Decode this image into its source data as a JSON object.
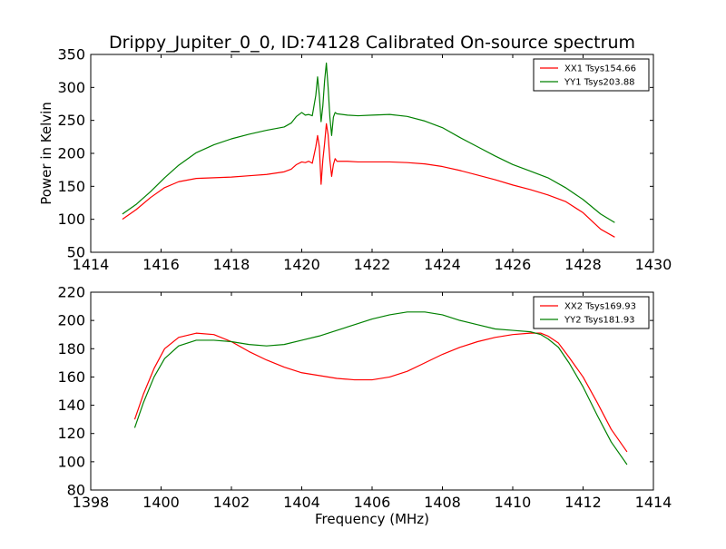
{
  "figure": {
    "title": "Drippy_Jupiter_0_0, ID:74128 Calibrated On-source spectrum",
    "xlabel": "Frequency (MHz)"
  },
  "chart_data": [
    {
      "type": "line",
      "ylabel": "Power in Kelvin",
      "xlim": [
        1414,
        1430
      ],
      "ylim": [
        50,
        350
      ],
      "xticks": [
        1414,
        1416,
        1418,
        1420,
        1422,
        1424,
        1426,
        1428,
        1430
      ],
      "yticks": [
        50,
        100,
        150,
        200,
        250,
        300,
        350
      ],
      "grid": false,
      "legend_position": "top-right",
      "series": [
        {
          "name": "XX1 Tsys154.66",
          "color": "#ff0000",
          "points": [
            [
              1414.9,
              100
            ],
            [
              1415.3,
              115
            ],
            [
              1415.7,
              133
            ],
            [
              1416.1,
              148
            ],
            [
              1416.5,
              157
            ],
            [
              1417.0,
              162
            ],
            [
              1417.5,
              163
            ],
            [
              1418.0,
              164
            ],
            [
              1418.5,
              166
            ],
            [
              1419.0,
              168
            ],
            [
              1419.5,
              172
            ],
            [
              1419.7,
              176
            ],
            [
              1419.85,
              183
            ],
            [
              1420.0,
              187
            ],
            [
              1420.1,
              186
            ],
            [
              1420.2,
              188
            ],
            [
              1420.3,
              185
            ],
            [
              1420.4,
              210
            ],
            [
              1420.45,
              227
            ],
            [
              1420.5,
              210
            ],
            [
              1420.55,
              153
            ],
            [
              1420.6,
              190
            ],
            [
              1420.65,
              215
            ],
            [
              1420.7,
              245
            ],
            [
              1420.75,
              228
            ],
            [
              1420.8,
              190
            ],
            [
              1420.85,
              165
            ],
            [
              1420.9,
              183
            ],
            [
              1420.95,
              192
            ],
            [
              1421.0,
              188
            ],
            [
              1421.3,
              188
            ],
            [
              1421.6,
              187
            ],
            [
              1422.0,
              187
            ],
            [
              1422.5,
              187
            ],
            [
              1423.0,
              186
            ],
            [
              1423.5,
              184
            ],
            [
              1424.0,
              180
            ],
            [
              1424.5,
              174
            ],
            [
              1425.0,
              167
            ],
            [
              1425.5,
              160
            ],
            [
              1426.0,
              152
            ],
            [
              1426.5,
              145
            ],
            [
              1427.0,
              137
            ],
            [
              1427.5,
              127
            ],
            [
              1428.0,
              110
            ],
            [
              1428.5,
              85
            ],
            [
              1428.9,
              73
            ]
          ]
        },
        {
          "name": "YY1 Tsys203.88",
          "color": "#008000",
          "points": [
            [
              1414.9,
              108
            ],
            [
              1415.3,
              123
            ],
            [
              1415.7,
              142
            ],
            [
              1416.1,
              163
            ],
            [
              1416.5,
              182
            ],
            [
              1417.0,
              201
            ],
            [
              1417.5,
              213
            ],
            [
              1418.0,
              222
            ],
            [
              1418.5,
              229
            ],
            [
              1419.0,
              235
            ],
            [
              1419.5,
              240
            ],
            [
              1419.7,
              246
            ],
            [
              1419.85,
              256
            ],
            [
              1420.0,
              262
            ],
            [
              1420.1,
              258
            ],
            [
              1420.2,
              259
            ],
            [
              1420.3,
              257
            ],
            [
              1420.4,
              288
            ],
            [
              1420.45,
              316
            ],
            [
              1420.5,
              288
            ],
            [
              1420.55,
              248
            ],
            [
              1420.6,
              272
            ],
            [
              1420.65,
              310
            ],
            [
              1420.7,
              337
            ],
            [
              1420.75,
              300
            ],
            [
              1420.8,
              255
            ],
            [
              1420.85,
              227
            ],
            [
              1420.9,
              255
            ],
            [
              1420.95,
              262
            ],
            [
              1421.0,
              260
            ],
            [
              1421.3,
              258
            ],
            [
              1421.6,
              257
            ],
            [
              1422.0,
              258
            ],
            [
              1422.5,
              259
            ],
            [
              1423.0,
              256
            ],
            [
              1423.5,
              249
            ],
            [
              1424.0,
              239
            ],
            [
              1424.5,
              224
            ],
            [
              1425.0,
              210
            ],
            [
              1425.5,
              196
            ],
            [
              1426.0,
              183
            ],
            [
              1426.5,
              173
            ],
            [
              1427.0,
              163
            ],
            [
              1427.5,
              148
            ],
            [
              1428.0,
              130
            ],
            [
              1428.5,
              108
            ],
            [
              1428.9,
              95
            ]
          ]
        }
      ]
    },
    {
      "type": "line",
      "ylabel": "",
      "xlim": [
        1398,
        1414
      ],
      "ylim": [
        80,
        220
      ],
      "xticks": [
        1398,
        1400,
        1402,
        1404,
        1406,
        1408,
        1410,
        1412,
        1414
      ],
      "yticks": [
        80,
        100,
        120,
        140,
        160,
        180,
        200,
        220
      ],
      "grid": false,
      "legend_position": "top-right",
      "series": [
        {
          "name": "XX2 Tsys169.93",
          "color": "#ff0000",
          "points": [
            [
              1399.25,
              130
            ],
            [
              1399.5,
              148
            ],
            [
              1399.8,
              166
            ],
            [
              1400.1,
              180
            ],
            [
              1400.5,
              188
            ],
            [
              1401.0,
              191
            ],
            [
              1401.5,
              190
            ],
            [
              1402.0,
              185
            ],
            [
              1402.5,
              178
            ],
            [
              1403.0,
              172
            ],
            [
              1403.5,
              167
            ],
            [
              1404.0,
              163
            ],
            [
              1404.5,
              161
            ],
            [
              1405.0,
              159
            ],
            [
              1405.5,
              158
            ],
            [
              1406.0,
              158
            ],
            [
              1406.5,
              160
            ],
            [
              1407.0,
              164
            ],
            [
              1407.5,
              170
            ],
            [
              1408.0,
              176
            ],
            [
              1408.5,
              181
            ],
            [
              1409.0,
              185
            ],
            [
              1409.5,
              188
            ],
            [
              1410.0,
              190
            ],
            [
              1410.5,
              191
            ],
            [
              1410.8,
              191
            ],
            [
              1411.0,
              189
            ],
            [
              1411.3,
              184
            ],
            [
              1411.6,
              174
            ],
            [
              1412.0,
              160
            ],
            [
              1412.4,
              142
            ],
            [
              1412.8,
              123
            ],
            [
              1413.25,
              107
            ]
          ]
        },
        {
          "name": "YY2 Tsys181.93",
          "color": "#008000",
          "points": [
            [
              1399.25,
              124
            ],
            [
              1399.5,
              142
            ],
            [
              1399.8,
              160
            ],
            [
              1400.1,
              173
            ],
            [
              1400.5,
              182
            ],
            [
              1401.0,
              186
            ],
            [
              1401.5,
              186
            ],
            [
              1402.0,
              185
            ],
            [
              1402.5,
              183
            ],
            [
              1403.0,
              182
            ],
            [
              1403.5,
              183
            ],
            [
              1404.0,
              186
            ],
            [
              1404.5,
              189
            ],
            [
              1405.0,
              193
            ],
            [
              1405.5,
              197
            ],
            [
              1406.0,
              201
            ],
            [
              1406.5,
              204
            ],
            [
              1407.0,
              206
            ],
            [
              1407.5,
              206
            ],
            [
              1408.0,
              204
            ],
            [
              1408.5,
              200
            ],
            [
              1409.0,
              197
            ],
            [
              1409.5,
              194
            ],
            [
              1410.0,
              193
            ],
            [
              1410.5,
              192
            ],
            [
              1410.8,
              190
            ],
            [
              1411.0,
              187
            ],
            [
              1411.3,
              181
            ],
            [
              1411.6,
              170
            ],
            [
              1412.0,
              153
            ],
            [
              1412.4,
              133
            ],
            [
              1412.8,
              114
            ],
            [
              1413.25,
              98
            ]
          ]
        }
      ]
    }
  ]
}
